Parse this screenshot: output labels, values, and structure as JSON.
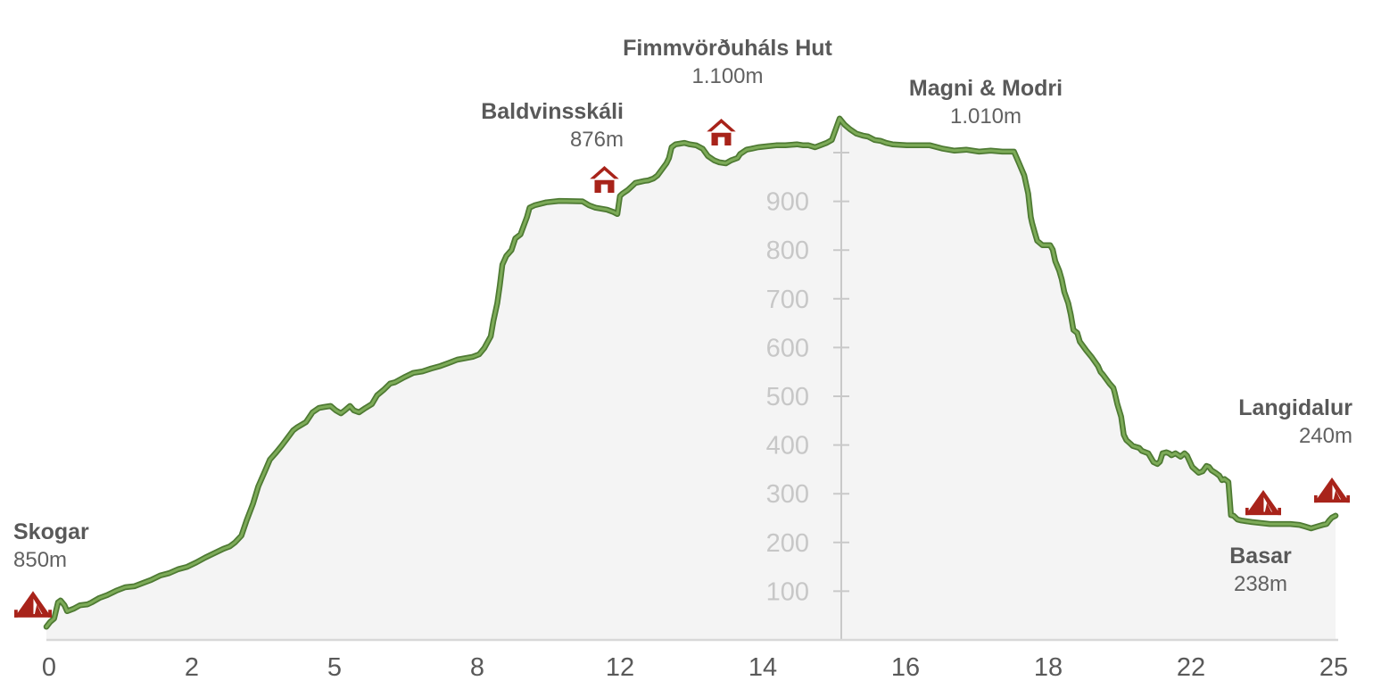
{
  "chart_data": {
    "type": "area",
    "description": "Hiking elevation profile from Skogar over Fimmvörðuháls pass down to Basar/Langidalur",
    "x_axis": {
      "unit": "km",
      "labels": [
        "0",
        "2",
        "5",
        "8",
        "12",
        "14",
        "16",
        "18",
        "22",
        "25"
      ]
    },
    "y_axis": {
      "unit": "m",
      "labels": [
        100,
        200,
        300,
        400,
        500,
        600,
        700,
        800,
        900
      ],
      "hidden_tick": 1000,
      "max_profile_elevation": 1070
    },
    "stations": [
      {
        "id": "skogar",
        "name": "Skogar",
        "elev_label": "850m",
        "marker": "tent"
      },
      {
        "id": "baldvinsskali",
        "name": "Baldvinsskáli",
        "elev_label": "876m",
        "marker": "hut"
      },
      {
        "id": "fimmvorduhals",
        "name": "Fimmvörðuháls Hut",
        "elev_label": "1.100m",
        "marker": "hut"
      },
      {
        "id": "magni",
        "name": "Magni & Modri",
        "elev_label": "1.010m",
        "marker": "none"
      },
      {
        "id": "langidalur",
        "name": "Langidalur",
        "elev_label": "240m",
        "marker": "tent"
      },
      {
        "id": "basar",
        "name": "Basar",
        "elev_label": "238m",
        "marker": "tent"
      }
    ],
    "profile": [
      [
        0,
        27
      ],
      [
        0.3,
        37
      ],
      [
        0.6,
        44
      ],
      [
        0.9,
        77
      ],
      [
        1.1,
        81
      ],
      [
        1.4,
        71
      ],
      [
        1.6,
        59
      ],
      [
        2.1,
        64
      ],
      [
        2.6,
        71
      ],
      [
        3.2,
        73
      ],
      [
        3.5,
        77
      ],
      [
        4.1,
        86
      ],
      [
        4.7,
        92
      ],
      [
        5.4,
        101
      ],
      [
        6.1,
        108
      ],
      [
        6.8,
        110
      ],
      [
        7.5,
        117
      ],
      [
        8.1,
        123
      ],
      [
        8.8,
        132
      ],
      [
        9.5,
        137
      ],
      [
        10.2,
        145
      ],
      [
        10.9,
        150
      ],
      [
        11.6,
        159
      ],
      [
        12.3,
        169
      ],
      [
        13.0,
        178
      ],
      [
        13.7,
        187
      ],
      [
        14.2,
        192
      ],
      [
        14.6,
        200
      ],
      [
        15.1,
        214
      ],
      [
        15.5,
        245
      ],
      [
        16.0,
        280
      ],
      [
        16.4,
        315
      ],
      [
        16.9,
        345
      ],
      [
        17.3,
        370
      ],
      [
        17.8,
        385
      ],
      [
        18.2,
        398
      ],
      [
        18.6,
        412
      ],
      [
        19.1,
        430
      ],
      [
        19.4,
        436
      ],
      [
        20.1,
        447
      ],
      [
        20.6,
        467
      ],
      [
        21.1,
        476
      ],
      [
        21.5,
        478
      ],
      [
        22.0,
        480
      ],
      [
        22.4,
        471
      ],
      [
        22.8,
        465
      ],
      [
        23.1,
        471
      ],
      [
        23.5,
        480
      ],
      [
        23.8,
        471
      ],
      [
        24.2,
        467
      ],
      [
        24.7,
        476
      ],
      [
        25.2,
        484
      ],
      [
        25.6,
        502
      ],
      [
        26.1,
        513
      ],
      [
        26.6,
        526
      ],
      [
        27.0,
        529
      ],
      [
        27.7,
        539
      ],
      [
        28.4,
        548
      ],
      [
        29.1,
        551
      ],
      [
        29.8,
        557
      ],
      [
        30.5,
        562
      ],
      [
        31.1,
        568
      ],
      [
        31.8,
        575
      ],
      [
        33.0,
        581
      ],
      [
        33.5,
        586
      ],
      [
        33.9,
        599
      ],
      [
        34.4,
        623
      ],
      [
        34.6,
        654
      ],
      [
        34.9,
        691
      ],
      [
        35.1,
        727
      ],
      [
        35.3,
        770
      ],
      [
        35.6,
        788
      ],
      [
        36.0,
        800
      ],
      [
        36.3,
        824
      ],
      [
        36.7,
        832
      ],
      [
        37.2,
        868
      ],
      [
        37.4,
        887
      ],
      [
        37.8,
        892
      ],
      [
        38.7,
        898
      ],
      [
        39.7,
        901
      ],
      [
        41.5,
        900
      ],
      [
        42.0,
        892
      ],
      [
        42.5,
        887
      ],
      [
        43.4,
        883
      ],
      [
        43.9,
        878
      ],
      [
        44.2,
        874
      ],
      [
        44.4,
        911
      ],
      [
        44.6,
        916
      ],
      [
        45.0,
        923
      ],
      [
        45.4,
        933
      ],
      [
        45.6,
        938
      ],
      [
        46.3,
        942
      ],
      [
        46.6,
        943
      ],
      [
        47.0,
        947
      ],
      [
        47.3,
        953
      ],
      [
        48.0,
        978
      ],
      [
        48.2,
        989
      ],
      [
        48.4,
        1011
      ],
      [
        48.7,
        1017
      ],
      [
        49.4,
        1020
      ],
      [
        49.8,
        1017
      ],
      [
        50.3,
        1015
      ],
      [
        50.8,
        1008
      ],
      [
        51.2,
        993
      ],
      [
        51.7,
        984
      ],
      [
        52.1,
        980
      ],
      [
        52.6,
        978
      ],
      [
        53.0,
        984
      ],
      [
        53.5,
        989
      ],
      [
        53.7,
        997
      ],
      [
        54.2,
        1006
      ],
      [
        54.6,
        1008
      ],
      [
        55.1,
        1011
      ],
      [
        55.8,
        1013
      ],
      [
        56.5,
        1015
      ],
      [
        57.2,
        1015
      ],
      [
        58.1,
        1017
      ],
      [
        58.6,
        1015
      ],
      [
        59.0,
        1015
      ],
      [
        59.5,
        1011
      ],
      [
        59.9,
        1015
      ],
      [
        60.4,
        1020
      ],
      [
        60.8,
        1026
      ],
      [
        61.4,
        1070
      ],
      [
        61.8,
        1057
      ],
      [
        62.2,
        1048
      ],
      [
        62.7,
        1039
      ],
      [
        63.2,
        1035
      ],
      [
        63.6,
        1033
      ],
      [
        64.1,
        1026
      ],
      [
        64.6,
        1024
      ],
      [
        65.0,
        1020
      ],
      [
        65.5,
        1017
      ],
      [
        66.6,
        1015
      ],
      [
        68.4,
        1015
      ],
      [
        69.4,
        1008
      ],
      [
        70.3,
        1004
      ],
      [
        71.2,
        1006
      ],
      [
        72.2,
        1002
      ],
      [
        73.1,
        1004
      ],
      [
        74.0,
        1002
      ],
      [
        74.9,
        1002
      ],
      [
        75.3,
        978
      ],
      [
        75.7,
        953
      ],
      [
        76.0,
        916
      ],
      [
        76.2,
        868
      ],
      [
        76.3,
        856
      ],
      [
        76.5,
        837
      ],
      [
        76.7,
        819
      ],
      [
        77.1,
        810
      ],
      [
        77.7,
        810
      ],
      [
        77.9,
        801
      ],
      [
        78.1,
        777
      ],
      [
        78.4,
        758
      ],
      [
        78.6,
        740
      ],
      [
        78.8,
        714
      ],
      [
        79.1,
        691
      ],
      [
        79.3,
        667
      ],
      [
        79.5,
        636
      ],
      [
        79.8,
        630
      ],
      [
        80.0,
        612
      ],
      [
        80.5,
        594
      ],
      [
        80.9,
        581
      ],
      [
        81.4,
        562
      ],
      [
        81.6,
        550
      ],
      [
        81.8,
        544
      ],
      [
        82.3,
        526
      ],
      [
        82.6,
        517
      ],
      [
        82.7,
        507
      ],
      [
        82.9,
        484
      ],
      [
        83.2,
        458
      ],
      [
        83.4,
        421
      ],
      [
        83.6,
        410
      ],
      [
        83.9,
        403
      ],
      [
        84.1,
        398
      ],
      [
        84.6,
        394
      ],
      [
        84.8,
        388
      ],
      [
        85.3,
        383
      ],
      [
        85.5,
        374
      ],
      [
        85.7,
        365
      ],
      [
        86.0,
        361
      ],
      [
        86.2,
        366
      ],
      [
        86.4,
        383
      ],
      [
        86.7,
        385
      ],
      [
        86.9,
        383
      ],
      [
        87.1,
        379
      ],
      [
        87.4,
        383
      ],
      [
        87.8,
        376
      ],
      [
        88.1,
        383
      ],
      [
        88.3,
        378
      ],
      [
        88.7,
        355
      ],
      [
        89.2,
        343
      ],
      [
        89.5,
        346
      ],
      [
        89.8,
        357
      ],
      [
        90.0,
        355
      ],
      [
        90.2,
        348
      ],
      [
        90.5,
        343
      ],
      [
        90.8,
        337
      ],
      [
        91.0,
        328
      ],
      [
        91.2,
        330
      ],
      [
        91.5,
        324
      ],
      [
        91.7,
        256
      ],
      [
        91.9,
        255
      ],
      [
        92.2,
        247
      ],
      [
        92.5,
        245
      ],
      [
        93.3,
        242
      ],
      [
        94.7,
        238
      ],
      [
        96.3,
        238
      ],
      [
        97.0,
        236
      ],
      [
        97.4,
        233
      ],
      [
        97.9,
        229
      ],
      [
        98.4,
        233
      ],
      [
        98.8,
        236
      ],
      [
        99.1,
        238
      ],
      [
        99.3,
        245
      ],
      [
        99.5,
        251
      ],
      [
        99.8,
        255
      ]
    ],
    "colors": {
      "line_outline": "#4e7a33",
      "line": "#7dab58",
      "fill": "#f4f4f4",
      "axis": "#c9c9c9",
      "x_axis_line": "#d8d8d8",
      "marker_red": "#a8231a",
      "label_text": "#595959",
      "y_tick_text": "#c7c7c7"
    }
  }
}
